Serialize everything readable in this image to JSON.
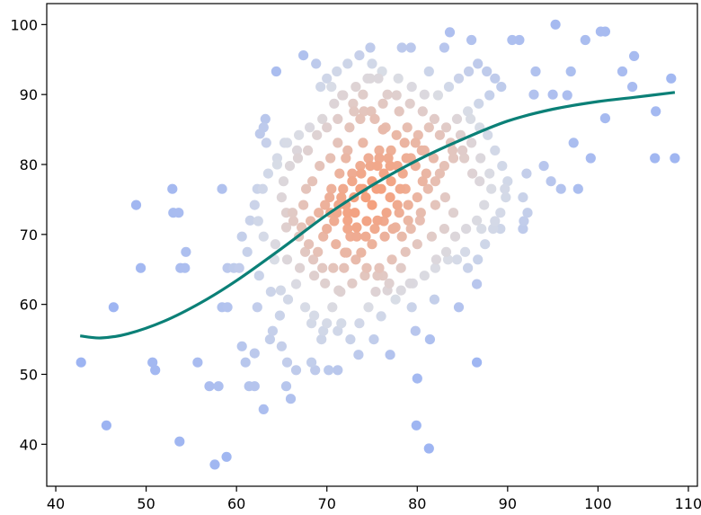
{
  "chart_data": {
    "type": "scatter",
    "xlim": [
      39,
      111
    ],
    "ylim": [
      34,
      103
    ],
    "x_ticks": [
      40,
      50,
      60,
      70,
      80,
      90,
      100,
      110
    ],
    "y_ticks": [
      40,
      50,
      60,
      70,
      80,
      90,
      100
    ],
    "x_tick_labels": [
      "40",
      "50",
      "60",
      "70",
      "80",
      "90",
      "100",
      "110"
    ],
    "y_tick_labels": [
      "40",
      "50",
      "60",
      "70",
      "80",
      "90",
      "100"
    ],
    "grid": false,
    "point_color_scale": {
      "low_density": "#9db4f2",
      "mid_density": "#d9dde6",
      "high_density": "#f4a07e"
    },
    "trend_line": {
      "color": "#0b8077",
      "x": [
        42.7,
        45.0,
        48.0,
        52.0,
        56.0,
        60.0,
        65.0,
        70.0,
        75.0,
        80.0,
        85.0,
        90.0,
        95.0,
        100.0,
        104.0,
        108.5
      ],
      "y": [
        55.5,
        55.2,
        55.8,
        57.6,
        60.2,
        63.4,
        68.0,
        72.8,
        77.0,
        80.6,
        83.6,
        86.2,
        87.9,
        89.0,
        89.6,
        90.3
      ]
    },
    "points": [
      [
        42.8,
        51.7
      ],
      [
        45.6,
        42.7
      ],
      [
        46.4,
        59.6
      ],
      [
        48.9,
        74.2
      ],
      [
        49.4,
        65.2
      ],
      [
        50.7,
        51.7
      ],
      [
        51.0,
        50.6
      ],
      [
        52.9,
        76.5
      ],
      [
        53.0,
        73.1
      ],
      [
        53.6,
        73.1
      ],
      [
        53.8,
        65.2
      ],
      [
        54.3,
        65.2
      ],
      [
        54.4,
        67.5
      ],
      [
        53.7,
        40.4
      ],
      [
        55.7,
        51.7
      ],
      [
        57.0,
        48.3
      ],
      [
        57.6,
        37.1
      ],
      [
        58.0,
        48.3
      ],
      [
        58.4,
        76.5
      ],
      [
        58.4,
        59.6
      ],
      [
        59.0,
        59.6
      ],
      [
        58.9,
        38.2
      ],
      [
        59.0,
        65.2
      ],
      [
        59.7,
        65.2
      ],
      [
        60.3,
        65.2
      ],
      [
        60.6,
        54.0
      ],
      [
        61.0,
        51.7
      ],
      [
        61.4,
        48.3
      ],
      [
        62.0,
        48.3
      ],
      [
        62.0,
        53.0
      ],
      [
        62.3,
        59.6
      ],
      [
        62.3,
        76.5
      ],
      [
        62.6,
        84.4
      ],
      [
        63.0,
        85.3
      ],
      [
        63.2,
        86.5
      ],
      [
        63.3,
        83.1
      ],
      [
        63.7,
        55.0
      ],
      [
        63.0,
        45.0
      ],
      [
        64.4,
        93.3
      ],
      [
        64.9,
        62.0
      ],
      [
        65.0,
        54.0
      ],
      [
        65.5,
        48.3
      ],
      [
        65.6,
        51.7
      ],
      [
        65.3,
        83.1
      ],
      [
        64.5,
        80.0
      ],
      [
        66.0,
        46.5
      ],
      [
        66.6,
        50.6
      ],
      [
        66.7,
        82.0
      ],
      [
        67.4,
        95.6
      ],
      [
        68.3,
        57.3
      ],
      [
        68.3,
        51.7
      ],
      [
        68.8,
        94.4
      ],
      [
        69.4,
        55.0
      ],
      [
        68.7,
        50.6
      ],
      [
        69.3,
        91.1
      ],
      [
        70.2,
        50.6
      ],
      [
        70.0,
        57.3
      ],
      [
        70.4,
        73.1
      ],
      [
        71.2,
        50.6
      ],
      [
        71.2,
        56.2
      ],
      [
        71.5,
        61.8
      ],
      [
        72.2,
        67.4
      ],
      [
        72.6,
        69.7
      ],
      [
        73.0,
        87.6
      ],
      [
        73.5,
        52.8
      ],
      [
        74.0,
        90.0
      ],
      [
        74.5,
        92.3
      ],
      [
        74.8,
        96.7
      ],
      [
        75.2,
        55.0
      ],
      [
        75.5,
        76.5
      ],
      [
        76.0,
        58.3
      ],
      [
        76.7,
        62.0
      ],
      [
        77.0,
        52.8
      ],
      [
        77.6,
        60.7
      ],
      [
        78.2,
        65.2
      ],
      [
        78.7,
        76.5
      ],
      [
        79.2,
        63.0
      ],
      [
        79.4,
        59.6
      ],
      [
        79.8,
        56.2
      ],
      [
        79.9,
        42.7
      ],
      [
        80.0,
        49.4
      ],
      [
        80.4,
        73.1
      ],
      [
        81.3,
        39.4
      ],
      [
        81.4,
        55.0
      ],
      [
        81.9,
        60.7
      ],
      [
        82.0,
        65.2
      ],
      [
        83.4,
        66.4
      ],
      [
        84.0,
        73.1
      ],
      [
        84.6,
        59.6
      ],
      [
        85.3,
        67.5
      ],
      [
        86.6,
        51.7
      ],
      [
        86.6,
        62.9
      ],
      [
        87.1,
        70.8
      ],
      [
        88.2,
        76.5
      ],
      [
        88.6,
        71.9
      ],
      [
        89.2,
        70.8
      ],
      [
        89.7,
        76.5
      ],
      [
        90.5,
        97.8
      ],
      [
        91.3,
        97.8
      ],
      [
        91.7,
        75.3
      ],
      [
        91.7,
        70.8
      ],
      [
        91.8,
        71.9
      ],
      [
        92.1,
        78.7
      ],
      [
        92.2,
        73.1
      ],
      [
        92.9,
        90.0
      ],
      [
        93.1,
        93.3
      ],
      [
        94.0,
        79.8
      ],
      [
        94.8,
        77.6
      ],
      [
        95.0,
        90.0
      ],
      [
        95.3,
        100.0
      ],
      [
        95.9,
        76.5
      ],
      [
        96.6,
        89.9
      ],
      [
        97.0,
        93.3
      ],
      [
        97.3,
        83.1
      ],
      [
        97.8,
        76.5
      ],
      [
        98.6,
        97.8
      ],
      [
        99.2,
        80.9
      ],
      [
        100.3,
        99.0
      ],
      [
        100.8,
        99.0
      ],
      [
        100.8,
        86.6
      ],
      [
        102.7,
        93.3
      ],
      [
        103.8,
        91.1
      ],
      [
        106.3,
        80.9
      ],
      [
        106.4,
        87.6
      ],
      [
        108.1,
        92.3
      ],
      [
        108.5,
        80.9
      ],
      [
        104.0,
        95.5
      ],
      [
        86.0,
        97.8
      ],
      [
        83.6,
        98.9
      ],
      [
        83.0,
        96.7
      ],
      [
        78.3,
        96.7
      ],
      [
        79.3,
        96.7
      ],
      [
        81.3,
        93.3
      ],
      [
        78.0,
        87.6
      ],
      [
        76.7,
        90.0
      ],
      [
        76.2,
        85.0
      ],
      [
        77.1,
        82.0
      ],
      [
        77.0,
        79.8
      ],
      [
        73.7,
        76.5
      ],
      [
        74.3,
        75.3
      ],
      [
        75.0,
        74.2
      ],
      [
        73.1,
        73.1
      ],
      [
        72.3,
        72.0
      ],
      [
        71.6,
        75.3
      ],
      [
        72.8,
        78.7
      ],
      [
        73.7,
        79.8
      ],
      [
        74.6,
        80.9
      ],
      [
        75.6,
        79.8
      ],
      [
        76.3,
        78.7
      ],
      [
        77.1,
        77.6
      ],
      [
        78.1,
        76.5
      ],
      [
        72.1,
        80.9
      ],
      [
        71.4,
        78.7
      ],
      [
        70.5,
        76.5
      ],
      [
        69.8,
        74.2
      ],
      [
        69.1,
        73.1
      ],
      [
        70.8,
        71.9
      ],
      [
        72.3,
        70.8
      ],
      [
        73.3,
        69.7
      ],
      [
        74.4,
        71.9
      ],
      [
        75.6,
        72.0
      ],
      [
        76.6,
        73.1
      ],
      [
        77.8,
        74.2
      ],
      [
        78.4,
        78.7
      ],
      [
        79.3,
        80.9
      ],
      [
        79.8,
        79.8
      ],
      [
        80.6,
        77.6
      ],
      [
        81.2,
        76.5
      ],
      [
        80.5,
        82.0
      ],
      [
        78.6,
        83.1
      ],
      [
        75.8,
        82.0
      ],
      [
        74.0,
        83.1
      ],
      [
        72.3,
        82.0
      ],
      [
        71.2,
        83.1
      ],
      [
        70.4,
        80.9
      ],
      [
        69.2,
        79.8
      ],
      [
        68.4,
        77.6
      ],
      [
        67.7,
        76.5
      ],
      [
        67.4,
        74.2
      ],
      [
        68.2,
        71.9
      ],
      [
        69.6,
        69.7
      ],
      [
        71.0,
        68.6
      ],
      [
        72.0,
        67.4
      ],
      [
        73.8,
        67.4
      ],
      [
        75.0,
        68.6
      ],
      [
        76.4,
        69.7
      ],
      [
        77.6,
        71.0
      ],
      [
        79.0,
        72.0
      ],
      [
        80.3,
        72.0
      ],
      [
        82.0,
        74.2
      ],
      [
        83.1,
        75.3
      ],
      [
        82.5,
        78.7
      ],
      [
        81.8,
        80.9
      ],
      [
        83.9,
        82.0
      ],
      [
        85.2,
        80.9
      ],
      [
        86.1,
        78.7
      ],
      [
        86.9,
        77.6
      ],
      [
        87.4,
        74.2
      ],
      [
        86.6,
        72.0
      ],
      [
        85.4,
        70.8
      ],
      [
        84.2,
        69.7
      ],
      [
        83.0,
        70.8
      ],
      [
        81.6,
        69.7
      ],
      [
        80.0,
        68.6
      ],
      [
        78.7,
        67.5
      ],
      [
        77.2,
        66.4
      ],
      [
        75.8,
        65.2
      ],
      [
        74.2,
        64.1
      ],
      [
        72.8,
        63.0
      ],
      [
        71.3,
        62.0
      ],
      [
        69.8,
        63.0
      ],
      [
        68.6,
        64.1
      ],
      [
        67.0,
        65.2
      ],
      [
        65.6,
        66.4
      ],
      [
        64.3,
        68.6
      ],
      [
        63.0,
        69.7
      ],
      [
        62.4,
        71.9
      ],
      [
        62.0,
        74.2
      ],
      [
        62.9,
        76.5
      ],
      [
        63.5,
        78.7
      ],
      [
        64.5,
        80.9
      ],
      [
        65.6,
        83.1
      ],
      [
        66.9,
        84.2
      ],
      [
        68.1,
        85.3
      ],
      [
        69.5,
        86.5
      ],
      [
        70.8,
        88.7
      ],
      [
        71.8,
        89.9
      ],
      [
        73.2,
        91.1
      ],
      [
        74.8,
        92.3
      ],
      [
        76.1,
        93.3
      ],
      [
        77.9,
        92.3
      ],
      [
        79.4,
        91.1
      ],
      [
        80.8,
        90.0
      ],
      [
        82.3,
        89.9
      ],
      [
        83.5,
        91.1
      ],
      [
        84.6,
        92.3
      ],
      [
        85.7,
        93.3
      ],
      [
        86.7,
        94.4
      ],
      [
        87.7,
        93.3
      ],
      [
        88.6,
        92.3
      ],
      [
        89.3,
        91.1
      ],
      [
        88.0,
        89.9
      ],
      [
        86.8,
        88.7
      ],
      [
        85.6,
        87.6
      ],
      [
        84.4,
        86.5
      ],
      [
        83.2,
        85.3
      ],
      [
        81.9,
        86.5
      ],
      [
        80.6,
        87.6
      ],
      [
        79.2,
        88.7
      ],
      [
        77.7,
        89.9
      ],
      [
        76.2,
        88.7
      ],
      [
        74.9,
        87.6
      ],
      [
        73.7,
        86.5
      ],
      [
        72.5,
        85.3
      ],
      [
        71.2,
        86.5
      ],
      [
        70.0,
        85.3
      ],
      [
        68.9,
        84.2
      ],
      [
        67.9,
        82.0
      ],
      [
        66.8,
        80.9
      ],
      [
        65.9,
        79.8
      ],
      [
        65.2,
        77.6
      ],
      [
        65.0,
        75.3
      ],
      [
        65.5,
        73.1
      ],
      [
        66.3,
        71.9
      ],
      [
        66.9,
        69.7
      ],
      [
        67.6,
        67.5
      ],
      [
        68.5,
        66.4
      ],
      [
        69.5,
        65.2
      ],
      [
        70.7,
        65.2
      ],
      [
        71.9,
        65.2
      ],
      [
        73.2,
        66.4
      ],
      [
        74.4,
        65.2
      ],
      [
        75.6,
        64.1
      ],
      [
        76.9,
        63.0
      ],
      [
        78.2,
        62.0
      ],
      [
        79.5,
        63.0
      ],
      [
        80.8,
        64.1
      ],
      [
        82.1,
        66.4
      ],
      [
        83.2,
        67.5
      ],
      [
        84.4,
        66.4
      ],
      [
        85.6,
        65.2
      ],
      [
        86.7,
        66.4
      ],
      [
        87.5,
        68.6
      ],
      [
        88.4,
        70.8
      ],
      [
        89.2,
        73.1
      ],
      [
        89.8,
        75.3
      ],
      [
        90.0,
        77.6
      ],
      [
        89.4,
        79.8
      ],
      [
        88.6,
        82.0
      ],
      [
        87.8,
        84.2
      ],
      [
        86.9,
        85.3
      ],
      [
        85.9,
        86.5
      ],
      [
        84.8,
        84.2
      ],
      [
        83.7,
        83.1
      ],
      [
        82.5,
        84.2
      ],
      [
        81.3,
        85.3
      ],
      [
        80.1,
        84.2
      ],
      [
        78.9,
        85.3
      ],
      [
        77.7,
        84.2
      ],
      [
        76.5,
        85.3
      ],
      [
        75.3,
        86.5
      ],
      [
        74.1,
        87.6
      ],
      [
        72.9,
        88.7
      ],
      [
        71.7,
        89.9
      ],
      [
        70.5,
        91.1
      ],
      [
        70.0,
        92.3
      ],
      [
        71.1,
        93.3
      ],
      [
        72.3,
        94.4
      ],
      [
        73.6,
        95.6
      ],
      [
        75.0,
        94.4
      ],
      [
        75.7,
        92.3
      ],
      [
        64.0,
        56.2
      ],
      [
        64.8,
        58.4
      ],
      [
        65.7,
        60.7
      ],
      [
        66.6,
        62.9
      ],
      [
        67.6,
        59.6
      ],
      [
        68.6,
        58.4
      ],
      [
        69.6,
        56.2
      ],
      [
        70.6,
        59.6
      ],
      [
        71.6,
        57.3
      ],
      [
        72.6,
        55.0
      ],
      [
        73.6,
        57.3
      ],
      [
        74.6,
        59.6
      ],
      [
        75.4,
        61.8
      ],
      [
        76.2,
        64.1
      ],
      [
        61.5,
        72.0
      ],
      [
        60.6,
        69.7
      ],
      [
        61.2,
        67.5
      ],
      [
        62.5,
        64.1
      ],
      [
        63.8,
        61.8
      ],
      [
        64.2,
        66.4
      ],
      [
        65.5,
        71.0
      ],
      [
        66.2,
        73.1
      ],
      [
        67.2,
        71.0
      ],
      [
        68.0,
        68.6
      ],
      [
        69.0,
        67.5
      ],
      [
        70.0,
        70.8
      ],
      [
        71.1,
        73.1
      ],
      [
        72.1,
        74.2
      ],
      [
        73.0,
        75.3
      ],
      [
        74.0,
        76.5
      ],
      [
        75.0,
        77.6
      ],
      [
        76.0,
        76.5
      ],
      [
        77.0,
        75.3
      ],
      [
        78.0,
        73.1
      ],
      [
        79.0,
        74.2
      ],
      [
        80.0,
        75.3
      ],
      [
        81.0,
        78.7
      ],
      [
        82.0,
        77.6
      ],
      [
        83.0,
        79.8
      ],
      [
        84.0,
        80.9
      ],
      [
        85.0,
        82.0
      ],
      [
        86.0,
        83.1
      ],
      [
        87.0,
        80.9
      ],
      [
        88.0,
        78.7
      ],
      [
        75.3,
        70.8
      ],
      [
        76.3,
        71.9
      ],
      [
        77.3,
        70.8
      ],
      [
        78.3,
        69.7
      ],
      [
        79.3,
        70.8
      ],
      [
        74.3,
        69.7
      ],
      [
        73.3,
        71.0
      ],
      [
        72.3,
        73.1
      ],
      [
        71.3,
        74.2
      ],
      [
        70.3,
        75.3
      ],
      [
        71.8,
        76.5
      ],
      [
        72.8,
        77.6
      ],
      [
        73.8,
        78.7
      ],
      [
        74.8,
        79.8
      ],
      [
        75.8,
        80.9
      ],
      [
        76.8,
        80.9
      ],
      [
        77.8,
        79.8
      ],
      [
        78.8,
        80.9
      ],
      [
        79.8,
        83.1
      ],
      [
        80.8,
        82.0
      ]
    ]
  }
}
